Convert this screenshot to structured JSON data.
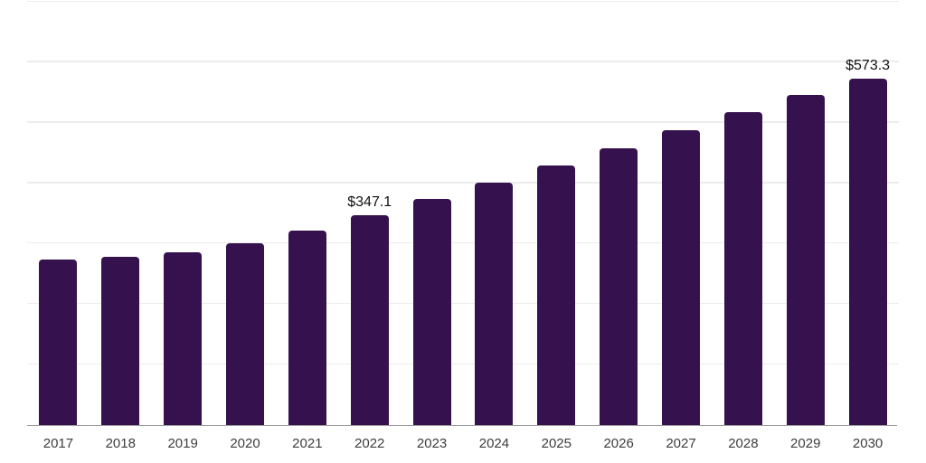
{
  "chart_data": {
    "type": "bar",
    "categories": [
      "2017",
      "2018",
      "2019",
      "2020",
      "2021",
      "2022",
      "2023",
      "2024",
      "2025",
      "2026",
      "2027",
      "2028",
      "2029",
      "2030"
    ],
    "values": [
      274.0,
      277.9,
      286.4,
      301.3,
      321.2,
      347.1,
      373.4,
      401.1,
      429.4,
      457.7,
      487.5,
      517.3,
      546.2,
      573.3
    ],
    "labeled_points": [
      {
        "category": "2022",
        "label": "$347.1"
      },
      {
        "category": "2030",
        "label": "$573.3"
      }
    ],
    "title": "",
    "xlabel": "",
    "ylabel": "",
    "ylim": [
      0,
      700
    ],
    "gridline_step": 100,
    "grid": "horizontal-only",
    "y_tick_labels_visible": false,
    "legend": "none",
    "colors": {
      "bar": "#35124e",
      "gridline": "#ececec",
      "axis_line": "#999999",
      "tick_label": "#3d3d3d",
      "value_label": "#111111",
      "background": "#ffffff"
    }
  }
}
